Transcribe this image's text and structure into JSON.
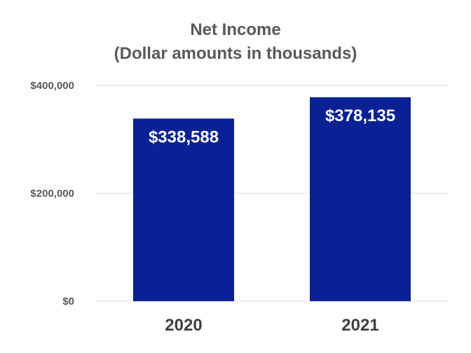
{
  "chart_data": {
    "type": "bar",
    "title": "Net Income",
    "subtitle": "(Dollar amounts in thousands)",
    "categories": [
      "2020",
      "2021"
    ],
    "values": [
      338588,
      378135
    ],
    "data_labels": [
      "$338,588",
      "$378,135"
    ],
    "xlabel": "",
    "ylabel": "",
    "ylim": [
      0,
      400000
    ],
    "y_ticks": [
      0,
      200000,
      400000
    ],
    "y_tick_labels": [
      "$0",
      "$200,000",
      "$400,000"
    ],
    "grid": true,
    "legend": "none",
    "colors": {
      "bar": "#0a2196",
      "grid": "#d9d9d9",
      "title": "#595959",
      "axis_text": "#595959",
      "category_text": "#404040",
      "data_label": "#ffffff"
    }
  }
}
